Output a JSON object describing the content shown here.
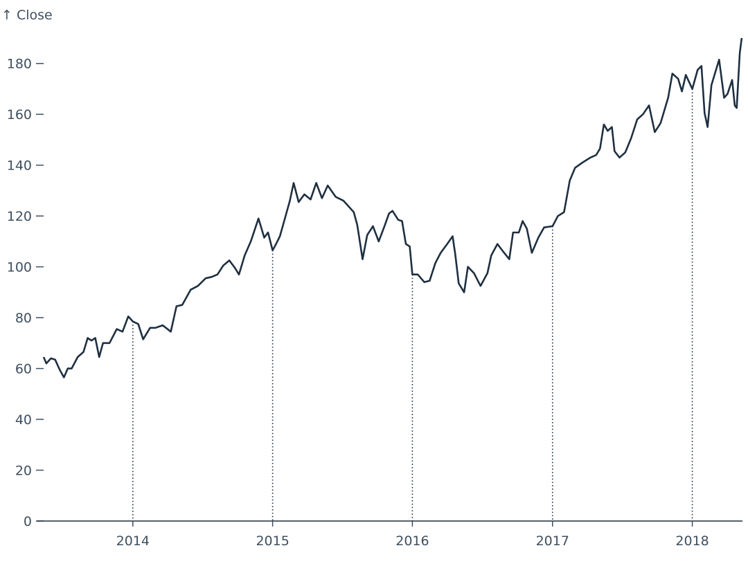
{
  "chart_data": {
    "type": "line",
    "title": "",
    "xlabel": "",
    "ylabel": "↑ Close",
    "x_ticks": [
      "2014",
      "2015",
      "2016",
      "2017",
      "2018"
    ],
    "y_ticks": [
      "0",
      "20",
      "40",
      "60",
      "80",
      "100",
      "120",
      "140",
      "160",
      "180"
    ],
    "xlim": [
      "2013-05-13",
      "2018-05-12"
    ],
    "ylim": [
      0,
      190
    ],
    "grid": false,
    "reference_lines": [
      {
        "date": "2014-01-01",
        "value": 78.5
      },
      {
        "date": "2015-01-01",
        "value": 106.5
      },
      {
        "date": "2016-01-01",
        "value": 97
      },
      {
        "date": "2017-01-01",
        "value": 116
      },
      {
        "date": "2018-01-01",
        "value": 170
      }
    ],
    "series": [
      {
        "values": [
          [
            "2013-05-13",
            64.5
          ],
          [
            "2013-05-20",
            62
          ],
          [
            "2013-06-01",
            64
          ],
          [
            "2013-06-12",
            63.5
          ],
          [
            "2013-06-24",
            59.5
          ],
          [
            "2013-07-05",
            56.5
          ],
          [
            "2013-07-15",
            60
          ],
          [
            "2013-07-25",
            60
          ],
          [
            "2013-08-10",
            64.5
          ],
          [
            "2013-08-25",
            66.5
          ],
          [
            "2013-09-05",
            72
          ],
          [
            "2013-09-15",
            71
          ],
          [
            "2013-09-25",
            72
          ],
          [
            "2013-10-05",
            64.5
          ],
          [
            "2013-10-15",
            70
          ],
          [
            "2013-11-01",
            70
          ],
          [
            "2013-11-20",
            75.5
          ],
          [
            "2013-12-05",
            74.5
          ],
          [
            "2013-12-20",
            80.5
          ],
          [
            "2014-01-01",
            78.5
          ],
          [
            "2014-01-15",
            77.5
          ],
          [
            "2014-01-28",
            71.5
          ],
          [
            "2014-02-15",
            76
          ],
          [
            "2014-03-01",
            76
          ],
          [
            "2014-03-20",
            77
          ],
          [
            "2014-04-10",
            74.5
          ],
          [
            "2014-04-25",
            84.5
          ],
          [
            "2014-05-10",
            85
          ],
          [
            "2014-06-01",
            91
          ],
          [
            "2014-06-20",
            92.5
          ],
          [
            "2014-07-10",
            95.5
          ],
          [
            "2014-07-25",
            96
          ],
          [
            "2014-08-10",
            97
          ],
          [
            "2014-08-25",
            100.5
          ],
          [
            "2014-09-10",
            102.5
          ],
          [
            "2014-09-25",
            99.5
          ],
          [
            "2014-10-05",
            97
          ],
          [
            "2014-10-20",
            104.5
          ],
          [
            "2014-11-05",
            110
          ],
          [
            "2014-11-25",
            119
          ],
          [
            "2014-12-10",
            111.5
          ],
          [
            "2014-12-20",
            113.5
          ],
          [
            "2015-01-01",
            106.5
          ],
          [
            "2015-01-10",
            109
          ],
          [
            "2015-01-20",
            112
          ],
          [
            "2015-02-01",
            118.5
          ],
          [
            "2015-02-15",
            126
          ],
          [
            "2015-02-25",
            133
          ],
          [
            "2015-03-10",
            125.5
          ],
          [
            "2015-03-25",
            128.5
          ],
          [
            "2015-04-10",
            126.5
          ],
          [
            "2015-04-25",
            133
          ],
          [
            "2015-05-10",
            127
          ],
          [
            "2015-05-25",
            132
          ],
          [
            "2015-06-15",
            127.5
          ],
          [
            "2015-07-05",
            126
          ],
          [
            "2015-07-20",
            123.5
          ],
          [
            "2015-08-01",
            121.5
          ],
          [
            "2015-08-10",
            116.5
          ],
          [
            "2015-08-24",
            103
          ],
          [
            "2015-09-05",
            112.5
          ],
          [
            "2015-09-20",
            116
          ],
          [
            "2015-10-05",
            110
          ],
          [
            "2015-10-20",
            116
          ],
          [
            "2015-11-01",
            121
          ],
          [
            "2015-11-10",
            122
          ],
          [
            "2015-11-25",
            118.5
          ],
          [
            "2015-12-05",
            118
          ],
          [
            "2015-12-15",
            109
          ],
          [
            "2015-12-25",
            108
          ],
          [
            "2016-01-01",
            97
          ],
          [
            "2016-01-15",
            97
          ],
          [
            "2016-02-01",
            94
          ],
          [
            "2016-02-15",
            94.5
          ],
          [
            "2016-03-01",
            101.5
          ],
          [
            "2016-03-15",
            105.5
          ],
          [
            "2016-04-01",
            109
          ],
          [
            "2016-04-15",
            112
          ],
          [
            "2016-04-22",
            105
          ],
          [
            "2016-05-01",
            93.5
          ],
          [
            "2016-05-15",
            90
          ],
          [
            "2016-05-25",
            100
          ],
          [
            "2016-06-10",
            97.5
          ],
          [
            "2016-06-27",
            92.5
          ],
          [
            "2016-07-15",
            97.5
          ],
          [
            "2016-07-25",
            104.5
          ],
          [
            "2016-08-10",
            109
          ],
          [
            "2016-08-25",
            106
          ],
          [
            "2016-09-10",
            103
          ],
          [
            "2016-09-20",
            113.5
          ],
          [
            "2016-10-05",
            113.5
          ],
          [
            "2016-10-15",
            118
          ],
          [
            "2016-10-26",
            115
          ],
          [
            "2016-11-08",
            105.5
          ],
          [
            "2016-11-25",
            111.5
          ],
          [
            "2016-12-10",
            115.5
          ],
          [
            "2017-01-01",
            116
          ],
          [
            "2017-01-15",
            120
          ],
          [
            "2017-01-31",
            121.5
          ],
          [
            "2017-02-15",
            134
          ],
          [
            "2017-03-01",
            139
          ],
          [
            "2017-03-20",
            141
          ],
          [
            "2017-04-10",
            143
          ],
          [
            "2017-04-25",
            144
          ],
          [
            "2017-05-05",
            146.5
          ],
          [
            "2017-05-15",
            156
          ],
          [
            "2017-05-25",
            153.5
          ],
          [
            "2017-06-05",
            155
          ],
          [
            "2017-06-12",
            145.5
          ],
          [
            "2017-06-25",
            143
          ],
          [
            "2017-07-10",
            145
          ],
          [
            "2017-07-25",
            150.5
          ],
          [
            "2017-08-10",
            158
          ],
          [
            "2017-08-25",
            160
          ],
          [
            "2017-09-10",
            163.5
          ],
          [
            "2017-09-25",
            153
          ],
          [
            "2017-10-10",
            156.5
          ],
          [
            "2017-10-30",
            166.5
          ],
          [
            "2017-11-10",
            176
          ],
          [
            "2017-11-25",
            174
          ],
          [
            "2017-12-05",
            169
          ],
          [
            "2017-12-15",
            175.5
          ],
          [
            "2018-01-01",
            170
          ],
          [
            "2018-01-15",
            177.5
          ],
          [
            "2018-01-25",
            179
          ],
          [
            "2018-02-02",
            160.5
          ],
          [
            "2018-02-10",
            155
          ],
          [
            "2018-02-20",
            171.5
          ],
          [
            "2018-03-01",
            176
          ],
          [
            "2018-03-12",
            181.5
          ],
          [
            "2018-03-25",
            166.5
          ],
          [
            "2018-04-03",
            168
          ],
          [
            "2018-04-15",
            173.5
          ],
          [
            "2018-04-22",
            163.5
          ],
          [
            "2018-04-27",
            162.5
          ],
          [
            "2018-05-05",
            184
          ],
          [
            "2018-05-10",
            190
          ]
        ]
      }
    ]
  }
}
